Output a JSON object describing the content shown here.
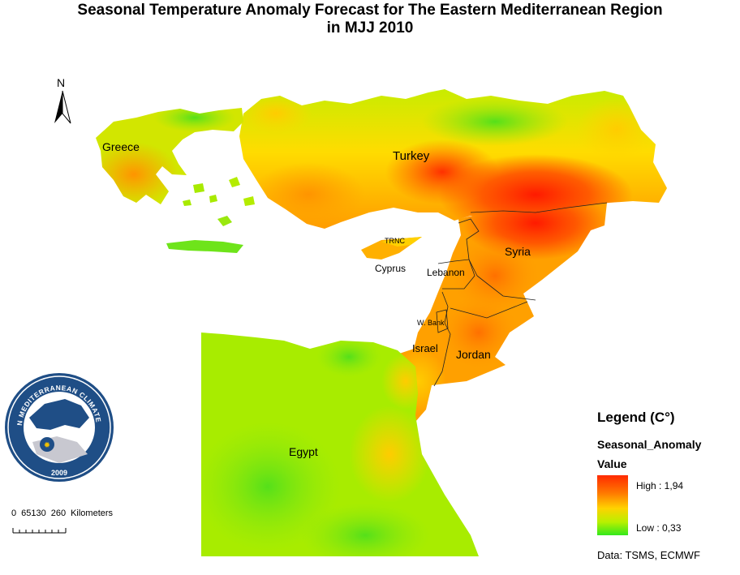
{
  "title": {
    "line1": "Seasonal Temperature Anomaly Forecast for  The Eastern Mediterranean Region",
    "line2": "in MJJ 2010"
  },
  "map": {
    "north_label": "N",
    "places": {
      "greece": "Greece",
      "turkey": "Turkey",
      "trnc": "TRNC",
      "cyprus": "Cyprus",
      "lebanon": "Lebanon",
      "syria": "Syria",
      "west_bank": "W. Bank",
      "israel": "Israel",
      "jordan": "Jordan",
      "egypt": "Egypt"
    }
  },
  "logo": {
    "ring_text": "EASTERN MEDITERRANEAN CLIMATE CENTRE",
    "year": "2009"
  },
  "scale_bar": {
    "ticks": [
      "0",
      "65130",
      "260"
    ],
    "unit": "Kilometers"
  },
  "legend": {
    "title": "Legend (C°)",
    "field": "Seasonal_Anomaly",
    "value_label": "Value",
    "high": "High : 1,94",
    "low": "Low : 0,33",
    "high_value": 1.94,
    "low_value": 0.33,
    "ramp_colors": [
      "#ff2a00",
      "#ff7a00",
      "#ffd200",
      "#b8f000",
      "#33e81c"
    ]
  },
  "credits": "Data:  TSMS, ECMWF"
}
